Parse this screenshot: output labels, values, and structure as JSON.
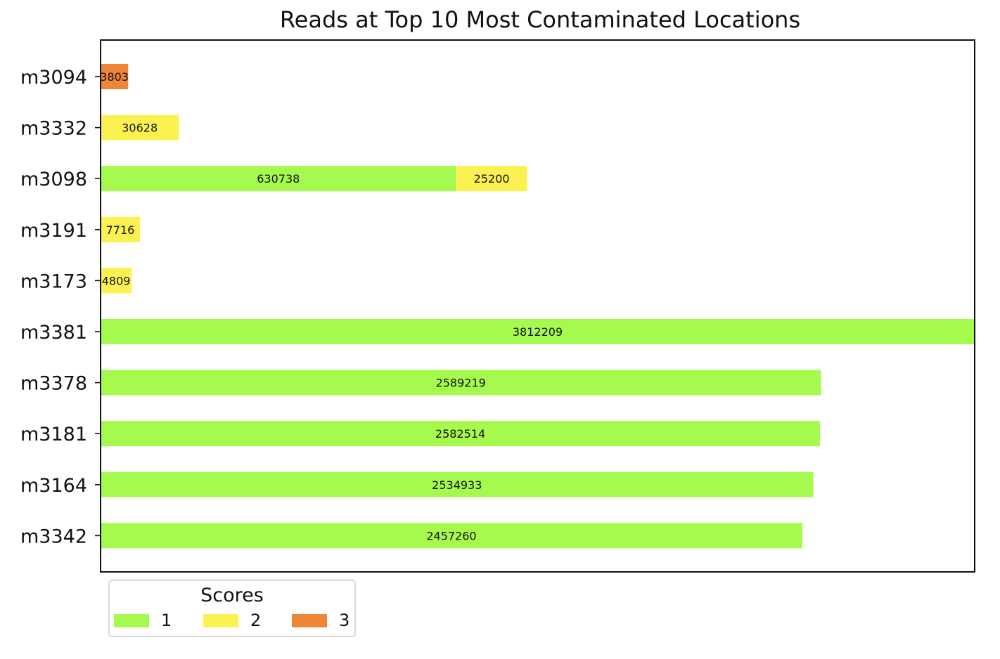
{
  "chart_data": {
    "type": "bar",
    "orientation": "horizontal",
    "stacked": true,
    "title": "Reads at Top 10 Most Contaminated Locations",
    "xlabel": "",
    "ylabel": "",
    "x_ticks_shown": false,
    "grid": false,
    "categories": [
      "m3094",
      "m3332",
      "m3098",
      "m3191",
      "m3173",
      "m3381",
      "m3378",
      "m3181",
      "m3164",
      "m3342"
    ],
    "series": [
      {
        "name": "1",
        "color": "#a6f94d",
        "values": [
          null,
          null,
          630738,
          null,
          null,
          3812209,
          2589219,
          2582514,
          2534933,
          2457260
        ],
        "labels": [
          "",
          "",
          "630738",
          "",
          "",
          "3812209",
          "2589219",
          "2582514",
          "2534933",
          "2457260"
        ]
      },
      {
        "name": "2",
        "color": "#fbf252",
        "values": [
          null,
          30628,
          25200,
          7716,
          4809,
          null,
          null,
          null,
          null,
          null
        ],
        "labels": [
          "",
          "30628",
          "25200",
          "7716",
          "4809",
          "",
          "",
          "",
          "",
          ""
        ]
      },
      {
        "name": "3",
        "color": "#f08437",
        "values": [
          3803,
          null,
          null,
          null,
          null,
          null,
          null,
          null,
          null,
          null
        ],
        "labels": [
          "3803",
          "",
          "",
          "",
          "",
          "",
          "",
          "",
          "",
          ""
        ]
      }
    ],
    "legend": {
      "title": "Scores",
      "placement": "bottom-left, below the plot",
      "entries": [
        "1",
        "2",
        "3"
      ]
    }
  }
}
